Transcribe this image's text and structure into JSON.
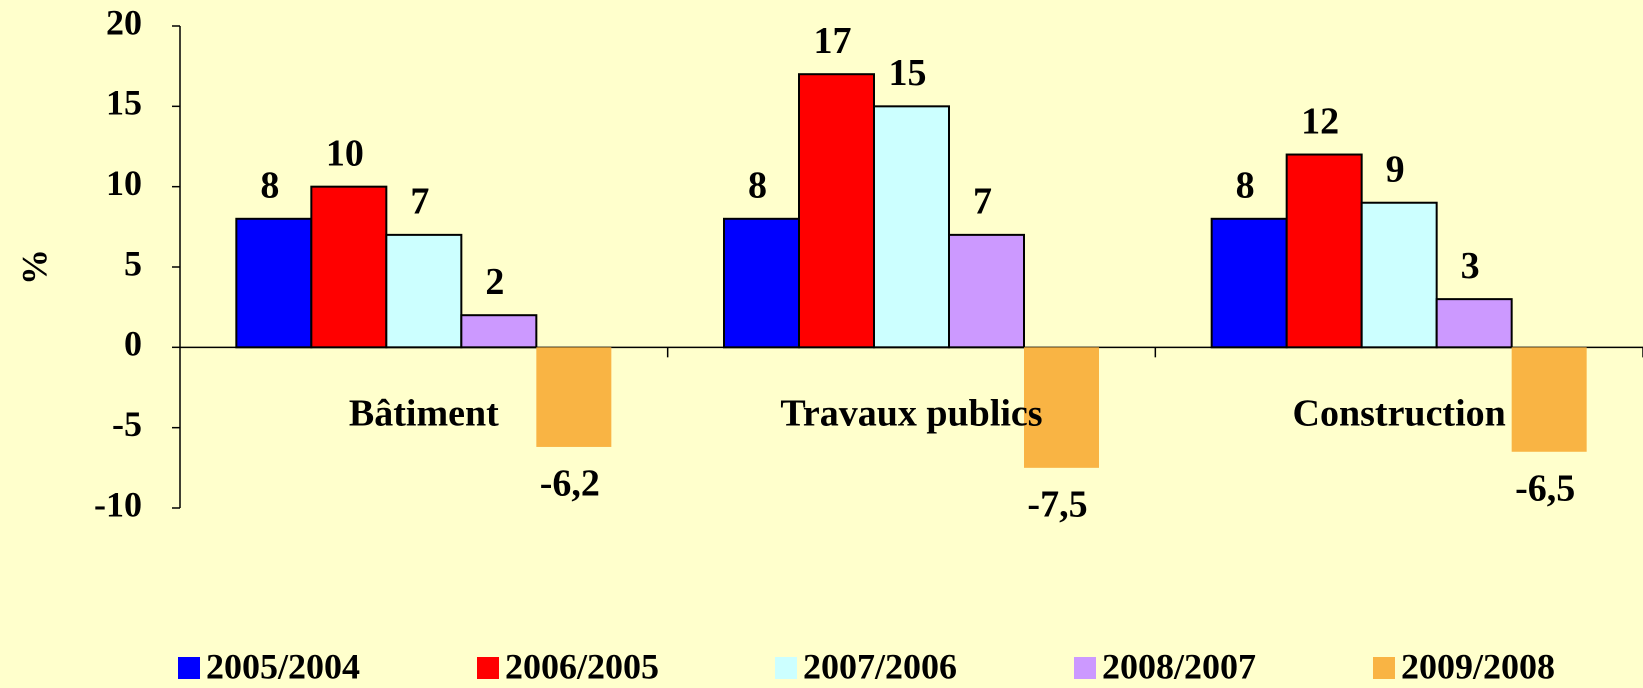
{
  "chart_data": {
    "type": "bar",
    "y_label": "%",
    "categories": [
      "Bâtiment",
      "Travaux publics",
      "Construction"
    ],
    "series": [
      {
        "name": "2005/2004",
        "color": "#0000FF",
        "values": [
          8,
          8,
          8
        ]
      },
      {
        "name": "2006/2005",
        "color": "#FF0000",
        "values": [
          10,
          17,
          12
        ]
      },
      {
        "name": "2007/2006",
        "color": "#CCFFFF",
        "values": [
          7,
          15,
          9
        ]
      },
      {
        "name": "2008/2007",
        "color": "#CC99FF",
        "values": [
          2,
          7,
          3
        ]
      },
      {
        "name": "2009/2008",
        "color": "#F9B444",
        "values": [
          -6.2,
          -7.5,
          -6.5
        ],
        "value_labels": [
          "-6,2",
          "-7,5",
          "-6,5"
        ]
      }
    ],
    "ylim": [
      -10,
      20
    ],
    "yticks": [
      -10,
      -5,
      0,
      5,
      10,
      15,
      20
    ],
    "legend": "bottom"
  }
}
